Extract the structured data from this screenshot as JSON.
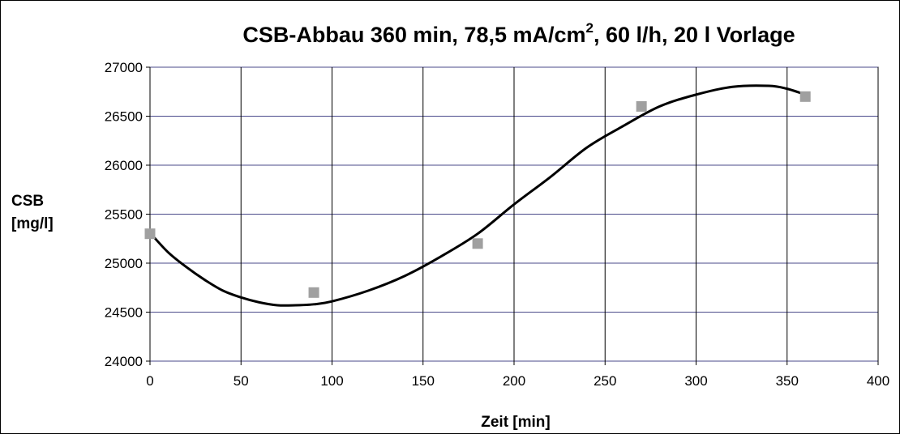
{
  "chart_data": {
    "type": "scatter",
    "title": "CSB-Abbau 360 min, 78,5 mA/cm",
    "title_superscript": "2",
    "title_suffix": ", 60 l/h, 20 l Vorlage",
    "xlabel": "Zeit [min]",
    "ylabel_line1": "CSB",
    "ylabel_line2": "[mg/l]",
    "xlim": [
      0,
      400
    ],
    "ylim": [
      24000,
      27000
    ],
    "x_ticks": [
      0,
      50,
      100,
      150,
      200,
      250,
      300,
      350,
      400
    ],
    "y_ticks": [
      24000,
      24500,
      25000,
      25500,
      26000,
      26500,
      27000
    ],
    "grid": true,
    "legend": "none",
    "series": [
      {
        "kind": "points",
        "color": "#a0a0a0",
        "x": [
          0,
          90,
          180,
          270,
          360
        ],
        "y": [
          25300,
          24700,
          25200,
          26600,
          26700
        ]
      },
      {
        "kind": "trendline",
        "color": "#000000",
        "x": [
          0,
          10,
          20,
          30,
          40,
          50,
          60,
          70,
          80,
          90,
          100,
          120,
          140,
          160,
          180,
          200,
          220,
          240,
          260,
          280,
          300,
          320,
          340,
          350,
          360
        ],
        "y": [
          25310,
          25110,
          24960,
          24830,
          24720,
          24650,
          24600,
          24570,
          24570,
          24580,
          24610,
          24720,
          24870,
          25070,
          25300,
          25600,
          25880,
          26180,
          26400,
          26600,
          26720,
          26800,
          26810,
          26780,
          26720
        ]
      }
    ]
  }
}
